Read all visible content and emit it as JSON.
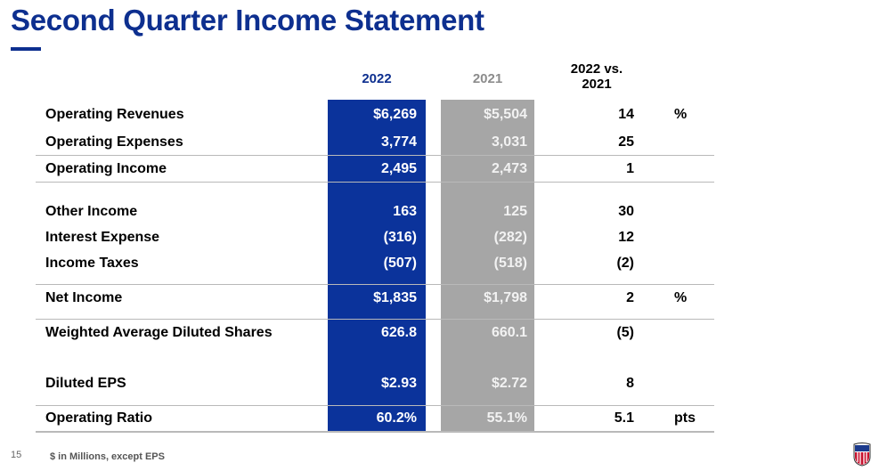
{
  "title": "Second Quarter Income Statement",
  "headers": {
    "y2022": "2022",
    "y2021": "2021",
    "change_line1": "2022 vs.",
    "change_line2": "2021"
  },
  "rows": [
    {
      "label": "Operating Revenues",
      "v2022": "$6,269",
      "v2021": "$5,504",
      "change": "14",
      "unit": "%"
    },
    {
      "label": "Operating Expenses",
      "v2022": "3,774",
      "v2021": "3,031",
      "change": "25",
      "unit": ""
    },
    {
      "label": "Operating Income",
      "v2022": "2,495",
      "v2021": "2,473",
      "change": "1",
      "unit": ""
    },
    {
      "label": "Other Income",
      "v2022": "163",
      "v2021": "125",
      "change": "30",
      "unit": ""
    },
    {
      "label": "Interest Expense",
      "v2022": "(316)",
      "v2021": "(282)",
      "change": "12",
      "unit": ""
    },
    {
      "label": "Income Taxes",
      "v2022": "(507)",
      "v2021": "(518)",
      "change": "(2)",
      "unit": ""
    },
    {
      "label": "Net Income",
      "v2022": "$1,835",
      "v2021": "$1,798",
      "change": "2",
      "unit": "%"
    },
    {
      "label": "Weighted Average Diluted Shares",
      "v2022": "626.8",
      "v2021": "660.1",
      "change": "(5)",
      "unit": ""
    },
    {
      "label": "Diluted EPS",
      "v2022": "$2.93",
      "v2021": "$2.72",
      "change": "8",
      "unit": ""
    },
    {
      "label": "Operating Ratio",
      "v2022": "60.2%",
      "v2021": "55.1%",
      "change": "5.1",
      "unit": "pts"
    }
  ],
  "footer": {
    "page": "15",
    "note": "$ in Millions, except EPS"
  },
  "colors": {
    "blue": "#0b339b",
    "gray": "#a6a6a6"
  }
}
